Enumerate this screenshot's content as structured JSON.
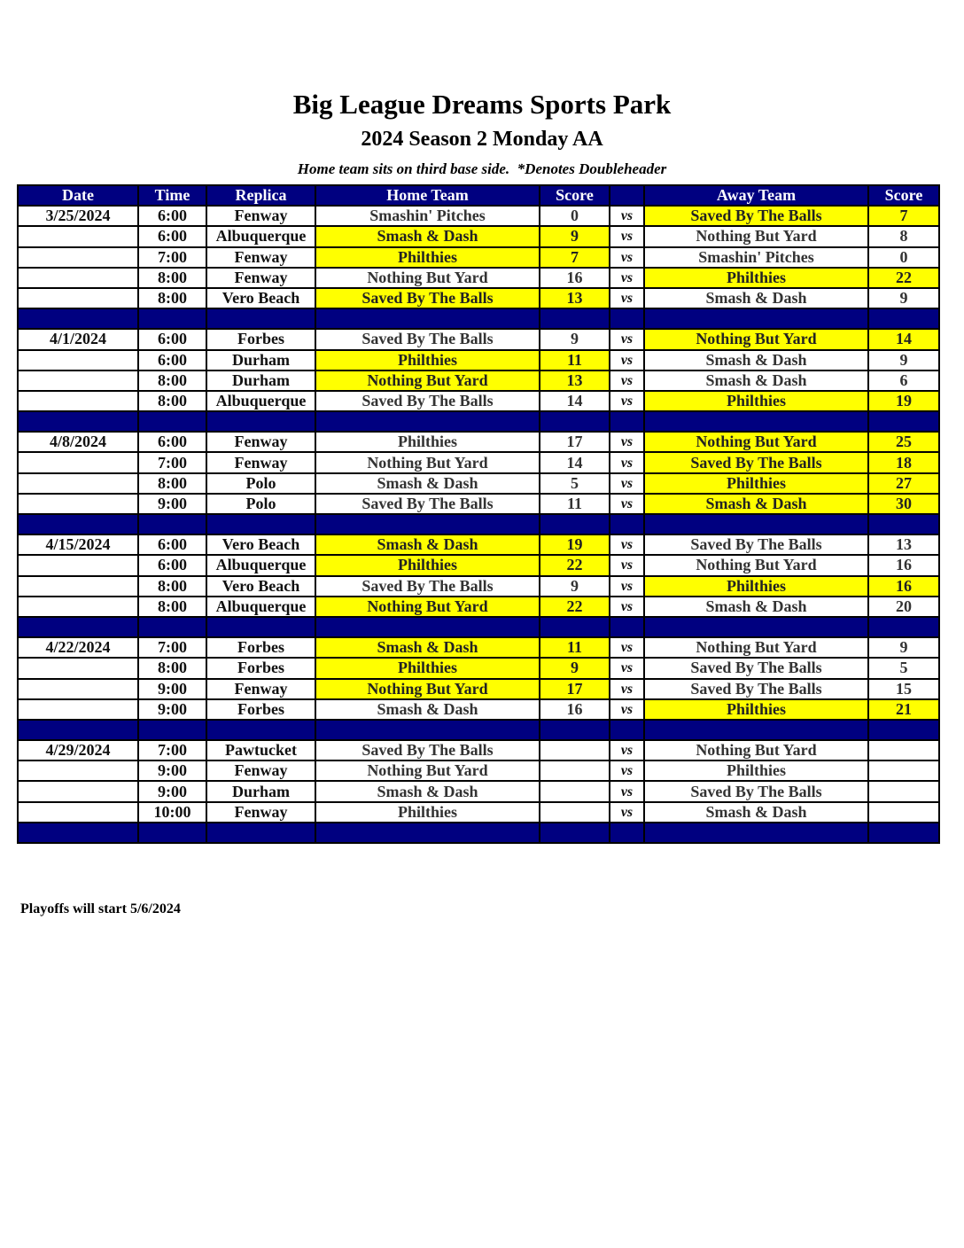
{
  "title": "Big League Dreams Sports Park",
  "subtitle": "2024 Season 2 Monday AA",
  "note": "Home team sits on third base side.  *Denotes Doubleheader",
  "columns": [
    "Date",
    "Time",
    "Replica",
    "Home Team",
    "Score",
    "",
    "Away Team",
    "Score"
  ],
  "vs_label": "vs",
  "colors": {
    "header": "#000080",
    "winner_highlight": "#ffff00"
  },
  "weeks": [
    {
      "date": "3/25/2024",
      "games": [
        {
          "time": "6:00",
          "replica": "Fenway",
          "home": "Smashin' Pitches",
          "home_score": "0",
          "away": "Saved By The Balls",
          "away_score": "7",
          "winner": "away"
        },
        {
          "time": "6:00",
          "replica": "Albuquerque",
          "home": "Smash & Dash",
          "home_score": "9",
          "away": "Nothing But Yard",
          "away_score": "8",
          "winner": "home"
        },
        {
          "time": "7:00",
          "replica": "Fenway",
          "home": "Philthies",
          "home_score": "7",
          "away": "Smashin' Pitches",
          "away_score": "0",
          "winner": "home"
        },
        {
          "time": "8:00",
          "replica": "Fenway",
          "home": "Nothing But Yard",
          "home_score": "16",
          "away": "Philthies",
          "away_score": "22",
          "winner": "away"
        },
        {
          "time": "8:00",
          "replica": "Vero Beach",
          "home": "Saved By The Balls",
          "home_score": "13",
          "away": "Smash & Dash",
          "away_score": "9",
          "winner": "home"
        }
      ]
    },
    {
      "date": "4/1/2024",
      "games": [
        {
          "time": "6:00",
          "replica": "Forbes",
          "home": "Saved By The Balls",
          "home_score": "9",
          "away": "Nothing But Yard",
          "away_score": "14",
          "winner": "away"
        },
        {
          "time": "6:00",
          "replica": "Durham",
          "home": "Philthies",
          "home_score": "11",
          "away": "Smash & Dash",
          "away_score": "9",
          "winner": "home"
        },
        {
          "time": "8:00",
          "replica": "Durham",
          "home": "Nothing But Yard",
          "home_score": "13",
          "away": "Smash & Dash",
          "away_score": "6",
          "winner": "home"
        },
        {
          "time": "8:00",
          "replica": "Albuquerque",
          "home": "Saved By The Balls",
          "home_score": "14",
          "away": "Philthies",
          "away_score": "19",
          "winner": "away"
        }
      ]
    },
    {
      "date": "4/8/2024",
      "games": [
        {
          "time": "6:00",
          "replica": "Fenway",
          "home": "Philthies",
          "home_score": "17",
          "away": "Nothing But Yard",
          "away_score": "25",
          "winner": "away"
        },
        {
          "time": "7:00",
          "replica": "Fenway",
          "home": "Nothing But Yard",
          "home_score": "14",
          "away": "Saved By The Balls",
          "away_score": "18",
          "winner": "away"
        },
        {
          "time": "8:00",
          "replica": "Polo",
          "home": "Smash & Dash",
          "home_score": "5",
          "away": "Philthies",
          "away_score": "27",
          "winner": "away"
        },
        {
          "time": "9:00",
          "replica": "Polo",
          "home": "Saved By The Balls",
          "home_score": "11",
          "away": "Smash & Dash",
          "away_score": "30",
          "winner": "away"
        }
      ]
    },
    {
      "date": "4/15/2024",
      "games": [
        {
          "time": "6:00",
          "replica": "Vero Beach",
          "home": "Smash & Dash",
          "home_score": "19",
          "away": "Saved By The Balls",
          "away_score": "13",
          "winner": "home"
        },
        {
          "time": "6:00",
          "replica": "Albuquerque",
          "home": "Philthies",
          "home_score": "22",
          "away": "Nothing But Yard",
          "away_score": "16",
          "winner": "home"
        },
        {
          "time": "8:00",
          "replica": "Vero Beach",
          "home": "Saved By The Balls",
          "home_score": "9",
          "away": "Philthies",
          "away_score": "16",
          "winner": "away"
        },
        {
          "time": "8:00",
          "replica": "Albuquerque",
          "home": "Nothing But Yard",
          "home_score": "22",
          "away": "Smash & Dash",
          "away_score": "20",
          "winner": "home"
        }
      ]
    },
    {
      "date": "4/22/2024",
      "games": [
        {
          "time": "7:00",
          "replica": "Forbes",
          "home": "Smash & Dash",
          "home_score": "11",
          "away": "Nothing But Yard",
          "away_score": "9",
          "winner": "home"
        },
        {
          "time": "8:00",
          "replica": "Forbes",
          "home": "Philthies",
          "home_score": "9",
          "away": "Saved By The Balls",
          "away_score": "5",
          "winner": "home"
        },
        {
          "time": "9:00",
          "replica": "Fenway",
          "home": "Nothing But Yard",
          "home_score": "17",
          "away": "Saved By The Balls",
          "away_score": "15",
          "winner": "home"
        },
        {
          "time": "9:00",
          "replica": "Forbes",
          "home": "Smash & Dash",
          "home_score": "16",
          "away": "Philthies",
          "away_score": "21",
          "winner": "away"
        }
      ]
    },
    {
      "date": "4/29/2024",
      "games": [
        {
          "time": "7:00",
          "replica": "Pawtucket",
          "home": "Saved By The Balls",
          "home_score": "",
          "away": "Nothing But Yard",
          "away_score": "",
          "winner": null
        },
        {
          "time": "9:00",
          "replica": "Fenway",
          "home": "Nothing But Yard",
          "home_score": "",
          "away": "Philthies",
          "away_score": "",
          "winner": null
        },
        {
          "time": "9:00",
          "replica": "Durham",
          "home": "Smash & Dash",
          "home_score": "",
          "away": "Saved By The Balls",
          "away_score": "",
          "winner": null
        },
        {
          "time": "10:00",
          "replica": "Fenway",
          "home": "Philthies",
          "home_score": "",
          "away": "Smash & Dash",
          "away_score": "",
          "winner": null
        }
      ]
    }
  ],
  "footer": "Playoffs will start 5/6/2024"
}
